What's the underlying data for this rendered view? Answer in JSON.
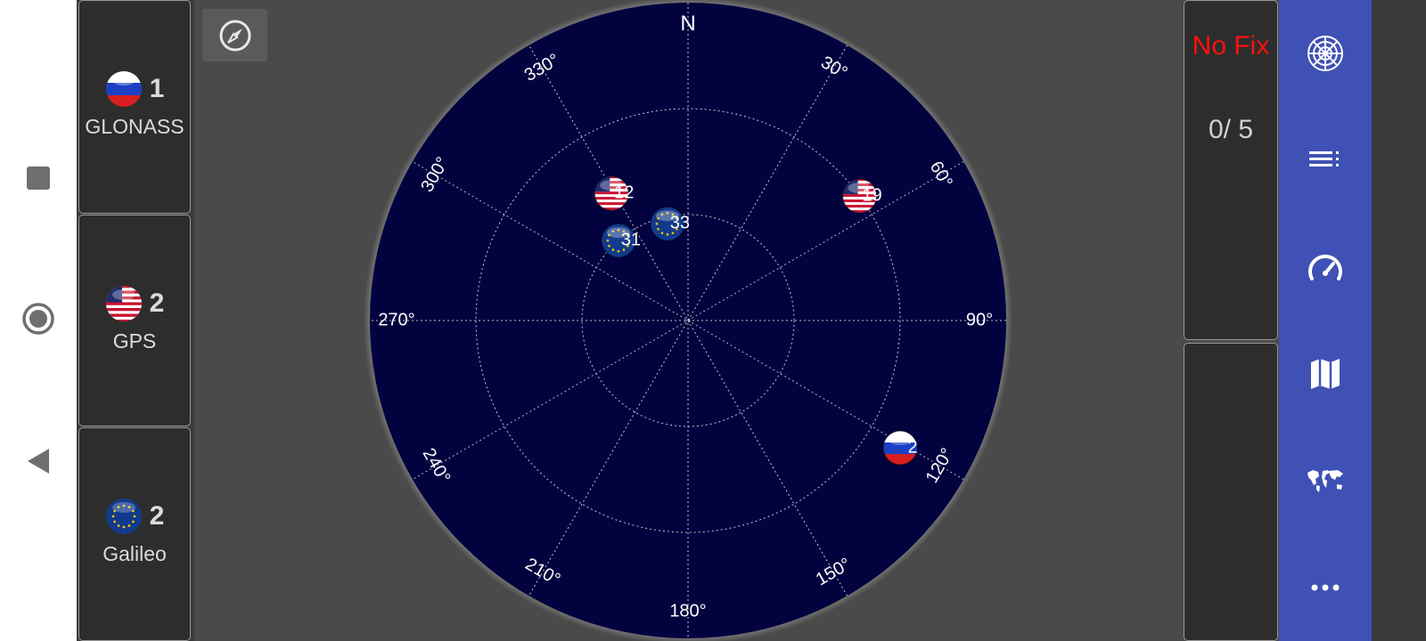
{
  "nav": {
    "icons": [
      "stop-square-icon",
      "home-circle-icon",
      "back-triangle-icon"
    ]
  },
  "systems": [
    {
      "name": "GLONASS",
      "count": "1",
      "flag": "russia-flag-icon"
    },
    {
      "name": "GPS",
      "count": "2",
      "flag": "usa-flag-icon"
    },
    {
      "name": "Galileo",
      "count": "2",
      "flag": "eu-flag-icon"
    }
  ],
  "compass_button": {
    "icon": "compass-icon"
  },
  "skyplot": {
    "north_label": "N",
    "azimuth_labels": [
      "30°",
      "60°",
      "90°",
      "120°",
      "150°",
      "180°",
      "210°",
      "240°",
      "270°",
      "300°",
      "330°"
    ],
    "background_color": "#02023f",
    "satellites": [
      {
        "prn": "12",
        "system": "GPS",
        "azimuth": 329,
        "elevation": 48
      },
      {
        "prn": "31",
        "system": "Galileo",
        "azimuth": 319,
        "elevation": 60
      },
      {
        "prn": "33",
        "system": "Galileo",
        "azimuth": 348,
        "elevation": 62
      },
      {
        "prn": "19",
        "system": "GPS",
        "azimuth": 54,
        "elevation": 30
      },
      {
        "prn": "2",
        "system": "GLONASS",
        "azimuth": 121,
        "elevation": 20
      }
    ]
  },
  "status": {
    "fix": "No Fix",
    "satellites": "0/ 5",
    "fix_color": "#ff1010"
  },
  "menu": {
    "items": [
      "skyplot-radar-icon",
      "list-icon",
      "speedometer-icon",
      "map-icon",
      "world-map-icon",
      "more-dots-icon"
    ],
    "background_color": "#3f51b5"
  }
}
